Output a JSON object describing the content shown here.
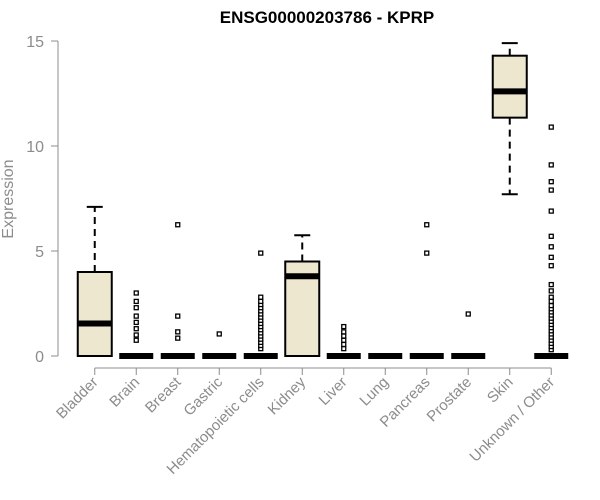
{
  "chart_data": {
    "type": "box",
    "title": "ENSG00000203786 - KPRP",
    "ylabel": "Expression",
    "xlabel": "",
    "ylim": [
      0,
      15
    ],
    "yticks": [
      "0",
      "5",
      "10",
      "15"
    ],
    "grid": false,
    "colors": {
      "box_fill": "#ede7cf",
      "box_stroke": "#000000",
      "axis": "#8c8c8c"
    },
    "categories": [
      "Bladder",
      "Brain",
      "Breast",
      "Gastric",
      "Hematopoietic cells",
      "Kidney",
      "Liver",
      "Lung",
      "Pancreas",
      "Prostate",
      "Skin",
      "Unknown / Other"
    ],
    "boxes": [
      {
        "category": "Bladder",
        "whisker_low": 0,
        "q1": 0,
        "median": 1.55,
        "q3": 4.0,
        "whisker_high": 7.1,
        "outliers": []
      },
      {
        "category": "Brain",
        "whisker_low": 0,
        "q1": 0,
        "median": 0,
        "q3": 0,
        "whisker_high": 0,
        "outliers": [
          0.75,
          1.0,
          1.3,
          1.6,
          1.9,
          2.3,
          2.6,
          3.0
        ]
      },
      {
        "category": "Breast",
        "whisker_low": 0,
        "q1": 0,
        "median": 0,
        "q3": 0,
        "whisker_high": 0,
        "outliers": [
          0.85,
          1.15,
          1.9,
          6.25
        ]
      },
      {
        "category": "Gastric",
        "whisker_low": 0,
        "q1": 0,
        "median": 0,
        "q3": 0,
        "whisker_high": 0,
        "outliers": [
          1.05
        ]
      },
      {
        "category": "Hematopoietic cells",
        "whisker_low": 0,
        "q1": 0,
        "median": 0,
        "q3": 0,
        "whisker_high": 0,
        "outliers": [
          0.35,
          0.5,
          0.65,
          0.8,
          0.95,
          1.1,
          1.25,
          1.4,
          1.55,
          1.7,
          1.85,
          2.0,
          2.15,
          2.3,
          2.45,
          2.6,
          2.8,
          4.9
        ]
      },
      {
        "category": "Kidney",
        "whisker_low": 0,
        "q1": 0,
        "median": 3.8,
        "q3": 4.5,
        "whisker_high": 5.75,
        "outliers": []
      },
      {
        "category": "Liver",
        "whisker_low": 0,
        "q1": 0,
        "median": 0,
        "q3": 0,
        "whisker_high": 0,
        "outliers": [
          0.35,
          0.55,
          0.75,
          0.95,
          1.15,
          1.4
        ]
      },
      {
        "category": "Lung",
        "whisker_low": 0,
        "q1": 0,
        "median": 0,
        "q3": 0,
        "whisker_high": 0,
        "outliers": []
      },
      {
        "category": "Pancreas",
        "whisker_low": 0,
        "q1": 0,
        "median": 0,
        "q3": 0,
        "whisker_high": 0,
        "outliers": [
          4.9,
          6.25
        ]
      },
      {
        "category": "Prostate",
        "whisker_low": 0,
        "q1": 0,
        "median": 0,
        "q3": 0,
        "whisker_high": 0,
        "outliers": [
          2.0
        ]
      },
      {
        "category": "Skin",
        "whisker_low": 7.7,
        "q1": 11.35,
        "median": 12.6,
        "q3": 14.3,
        "whisker_high": 14.9,
        "outliers": []
      },
      {
        "category": "Unknown / Other",
        "whisker_low": 0,
        "q1": 0,
        "median": 0,
        "q3": 0,
        "whisker_high": 0,
        "outliers": [
          0.3,
          0.45,
          0.6,
          0.75,
          0.9,
          1.05,
          1.2,
          1.35,
          1.5,
          1.65,
          1.8,
          1.95,
          2.1,
          2.25,
          2.4,
          2.6,
          2.8,
          3.1,
          3.4,
          4.3,
          4.7,
          5.2,
          5.7,
          6.9,
          7.9,
          8.3,
          9.1,
          10.9
        ]
      }
    ]
  }
}
